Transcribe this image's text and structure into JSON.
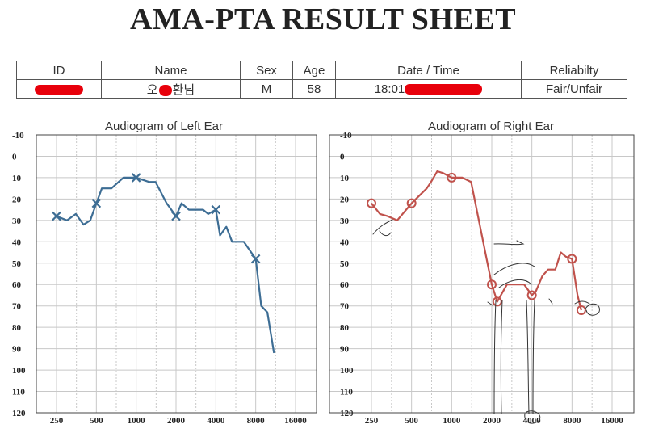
{
  "sheet": {
    "title": "AMA-PTA RESULT SHEET"
  },
  "info": {
    "headers": [
      "ID",
      "Name",
      "Sex",
      "Age",
      "Date / Time",
      "Reliabilty"
    ],
    "values": {
      "name_first": "오",
      "name_last": "환님",
      "sex": "M",
      "age": "58",
      "time_prefix": "18:01",
      "reliability": "Fair/Unfair"
    }
  },
  "colors": {
    "left": "#3d6d94",
    "right": "#c0524c",
    "grid": "#c8c8c8",
    "axis": "#444444"
  },
  "chart_data": [
    {
      "type": "line",
      "title": "Audiogram of Left Ear",
      "marker": "x",
      "xscale": "log",
      "xticks": [
        "250",
        "500",
        "1000",
        "2000",
        "4000",
        "8000",
        "16000"
      ],
      "yticks": [
        "-10",
        "0",
        "10",
        "20",
        "30",
        "40",
        "50",
        "60",
        "70",
        "80",
        "90",
        "100",
        "110",
        "120"
      ],
      "ylim": [
        -10,
        120
      ],
      "y_inverted": true,
      "grid": true,
      "series": [
        {
          "points": [
            [
              250,
              28
            ],
            [
              300,
              30
            ],
            [
              350,
              27
            ],
            [
              400,
              32
            ],
            [
              450,
              30
            ],
            [
              500,
              22
            ],
            [
              550,
              15
            ],
            [
              650,
              15
            ],
            [
              800,
              10
            ],
            [
              1000,
              10
            ],
            [
              1250,
              12
            ],
            [
              1400,
              12
            ],
            [
              1700,
              22
            ],
            [
              2000,
              28
            ],
            [
              2200,
              22
            ],
            [
              2500,
              25
            ],
            [
              3200,
              25
            ],
            [
              3500,
              27
            ],
            [
              4000,
              25
            ],
            [
              4300,
              37
            ],
            [
              4800,
              33
            ],
            [
              5300,
              40
            ],
            [
              6500,
              40
            ],
            [
              8000,
              48
            ],
            [
              8800,
              70
            ],
            [
              9800,
              73
            ],
            [
              11000,
              92
            ]
          ],
          "markers": [
            [
              250,
              28
            ],
            [
              500,
              22
            ],
            [
              1000,
              10
            ],
            [
              2000,
              28
            ],
            [
              4000,
              25
            ],
            [
              8000,
              48
            ]
          ]
        }
      ]
    },
    {
      "type": "line",
      "title": "Audiogram of Right Ear",
      "marker": "o",
      "xscale": "log",
      "xticks": [
        "250",
        "500",
        "1000",
        "2000",
        "4000",
        "8000",
        "16000"
      ],
      "yticks": [
        "-10",
        "0",
        "10",
        "20",
        "30",
        "40",
        "50",
        "60",
        "70",
        "80",
        "90",
        "100",
        "110",
        "120"
      ],
      "ylim": [
        -10,
        120
      ],
      "y_inverted": true,
      "grid": true,
      "series": [
        {
          "points": [
            [
              250,
              22
            ],
            [
              290,
              27
            ],
            [
              330,
              28
            ],
            [
              390,
              30
            ],
            [
              500,
              22
            ],
            [
              560,
              19
            ],
            [
              650,
              15
            ],
            [
              700,
              12
            ],
            [
              780,
              7
            ],
            [
              870,
              8
            ],
            [
              1000,
              10
            ],
            [
              1200,
              10
            ],
            [
              1400,
              12
            ],
            [
              2000,
              60
            ],
            [
              2200,
              68
            ],
            [
              2600,
              60
            ],
            [
              3500,
              60
            ],
            [
              4000,
              65
            ],
            [
              4300,
              63
            ],
            [
              4800,
              56
            ],
            [
              5300,
              53
            ],
            [
              6000,
              53
            ],
            [
              6600,
              45
            ],
            [
              7200,
              47
            ],
            [
              8000,
              48
            ],
            [
              8800,
              65
            ],
            [
              9400,
              72
            ]
          ],
          "markers": [
            [
              250,
              22
            ],
            [
              500,
              22
            ],
            [
              1000,
              10
            ],
            [
              2000,
              60
            ],
            [
              2200,
              68
            ],
            [
              4000,
              65
            ],
            [
              8000,
              48
            ],
            [
              9400,
              72
            ]
          ]
        }
      ]
    }
  ]
}
